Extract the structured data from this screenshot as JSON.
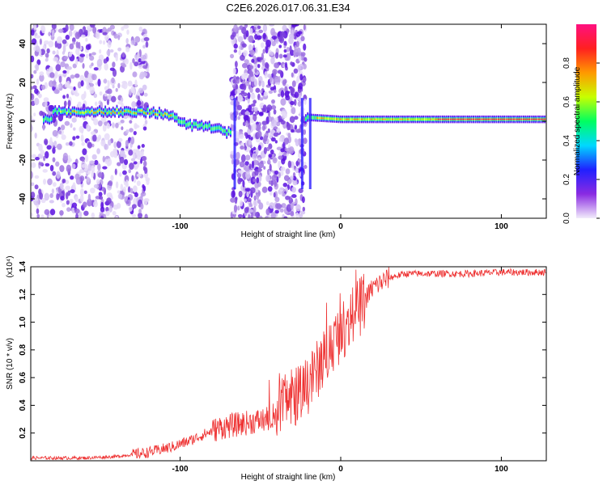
{
  "title": "C2E6.2026.017.06.31.E34",
  "chart_data": [
    {
      "type": "heatmap",
      "xlabel": "Height of straight line (km)",
      "ylabel": "Frequency (Hz)",
      "xlim": [
        -193,
        128
      ],
      "ylim": [
        -50,
        50
      ],
      "x_ticks": [
        -100,
        0,
        100
      ],
      "y_ticks": [
        -40,
        -20,
        0,
        20,
        40
      ],
      "colorbar": {
        "label": "Normalized spectral amplitude",
        "range": [
          0,
          1
        ],
        "ticks": [
          "0.0",
          "0.2",
          "0.4",
          "0.6",
          "0.8"
        ],
        "tick_values": [
          0,
          0.2,
          0.4,
          0.6,
          0.8
        ],
        "colors": [
          "#f2ecfb",
          "#8a2be2",
          "#2020ff",
          "#00d8ff",
          "#00ff60",
          "#c8ff00",
          "#ff9900",
          "#ff2020",
          "#ff1080"
        ]
      },
      "noise_regions": [
        {
          "x": [
            -193,
            -120
          ],
          "density": 0.6
        },
        {
          "x": [
            -68,
            -22
          ],
          "density": 1.0
        }
      ],
      "ridge": [
        {
          "x": -180,
          "y": 5
        },
        {
          "x": -140,
          "y": 5
        },
        {
          "x": -120,
          "y": 5
        },
        {
          "x": -105,
          "y": 3
        },
        {
          "x": -95,
          "y": -2
        },
        {
          "x": -80,
          "y": -3
        },
        {
          "x": -70,
          "y": -6
        },
        {
          "x": -60,
          "y": 0
        },
        {
          "x": -20,
          "y": 2
        },
        {
          "x": 0,
          "y": 1
        },
        {
          "x": 128,
          "y": 1
        }
      ]
    },
    {
      "type": "line",
      "xlabel": "Height of straight line (km)",
      "ylabel": "SNR (10 * v/v)",
      "scale_label": "(x10⁴)",
      "xlim": [
        -193,
        128
      ],
      "ylim": [
        0,
        1.4
      ],
      "x_ticks": [
        -100,
        0,
        100
      ],
      "y_ticks": [
        0.2,
        0.4,
        0.6,
        0.8,
        1.0,
        1.2,
        1.4
      ],
      "series": [
        {
          "color": "#ee3333",
          "x": [
            -193,
            -180,
            -160,
            -140,
            -120,
            -105,
            -95,
            -85,
            -75,
            -65,
            -55,
            -45,
            -40,
            -35,
            -30,
            -25,
            -20,
            -15,
            -10,
            -5,
            0,
            5,
            10,
            15,
            20,
            30,
            40,
            60,
            80,
            100,
            128
          ],
          "y": [
            0.02,
            0.02,
            0.02,
            0.03,
            0.06,
            0.1,
            0.14,
            0.19,
            0.24,
            0.26,
            0.28,
            0.3,
            0.35,
            0.4,
            0.45,
            0.5,
            0.55,
            0.65,
            0.75,
            0.85,
            0.93,
            1.0,
            1.08,
            1.16,
            1.25,
            1.32,
            1.35,
            1.35,
            1.35,
            1.36,
            1.36
          ]
        }
      ]
    }
  ]
}
